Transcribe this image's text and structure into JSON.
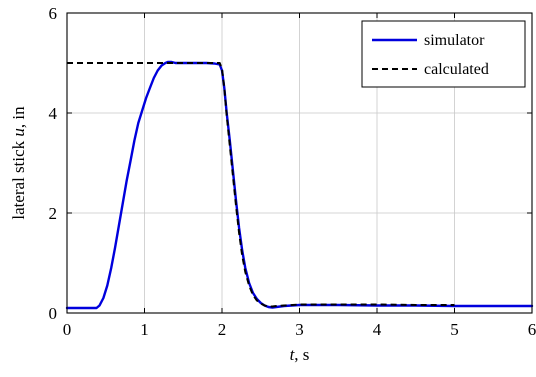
{
  "chart_data": {
    "type": "line",
    "title": "",
    "xlabel": {
      "var": "t",
      "unit": ", s"
    },
    "ylabel": {
      "prefix": "lateral stick ",
      "var": "u",
      "unit": ", in"
    },
    "xlim": [
      0,
      6
    ],
    "ylim": [
      0,
      6
    ],
    "xticks": [
      "0",
      "1",
      "2",
      "3",
      "4",
      "5",
      "6"
    ],
    "yticks": [
      "0",
      "2",
      "4",
      "6"
    ],
    "grid": true,
    "legend_position": "top-right",
    "series": [
      {
        "name": "simulator",
        "style": "solid",
        "color": "#0000dd",
        "x": [
          0.0,
          0.38,
          0.42,
          0.47,
          0.52,
          0.57,
          0.62,
          0.67,
          0.72,
          0.77,
          0.82,
          0.87,
          0.92,
          0.97,
          1.02,
          1.07,
          1.12,
          1.17,
          1.22,
          1.27,
          1.3,
          1.35,
          1.4,
          1.5,
          1.6,
          1.7,
          1.8,
          1.9,
          1.97,
          2.0,
          2.03,
          2.06,
          2.1,
          2.14,
          2.18,
          2.22,
          2.26,
          2.3,
          2.35,
          2.4,
          2.45,
          2.5,
          2.55,
          2.6,
          2.65,
          2.7,
          2.8,
          2.9,
          3.0,
          3.2,
          3.5,
          4.0,
          4.5,
          5.0,
          5.5,
          6.0
        ],
        "y": [
          0.1,
          0.1,
          0.15,
          0.3,
          0.55,
          0.9,
          1.3,
          1.75,
          2.2,
          2.65,
          3.05,
          3.45,
          3.8,
          4.05,
          4.3,
          4.5,
          4.7,
          4.85,
          4.95,
          5.0,
          5.02,
          5.02,
          5.0,
          5.0,
          5.0,
          5.0,
          5.0,
          4.99,
          4.97,
          4.85,
          4.5,
          4.0,
          3.45,
          2.85,
          2.25,
          1.7,
          1.25,
          0.9,
          0.6,
          0.4,
          0.28,
          0.2,
          0.15,
          0.12,
          0.11,
          0.12,
          0.14,
          0.15,
          0.16,
          0.16,
          0.16,
          0.15,
          0.15,
          0.14,
          0.14,
          0.14
        ]
      },
      {
        "name": "calculated",
        "style": "dashed",
        "color": "#000000",
        "x": [
          0.0,
          1.3,
          1.97,
          2.0,
          2.03,
          2.06,
          2.1,
          2.14,
          2.18,
          2.22,
          2.26,
          2.3,
          2.35,
          2.4,
          2.45,
          2.5,
          2.55,
          2.6,
          2.65,
          2.7,
          2.8,
          3.0,
          3.5,
          4.0,
          4.5,
          5.0
        ],
        "y": [
          5.0,
          5.0,
          5.0,
          4.88,
          4.5,
          3.95,
          3.35,
          2.75,
          2.15,
          1.6,
          1.15,
          0.82,
          0.55,
          0.36,
          0.25,
          0.19,
          0.15,
          0.13,
          0.13,
          0.14,
          0.15,
          0.17,
          0.17,
          0.17,
          0.16,
          0.16
        ]
      }
    ]
  }
}
